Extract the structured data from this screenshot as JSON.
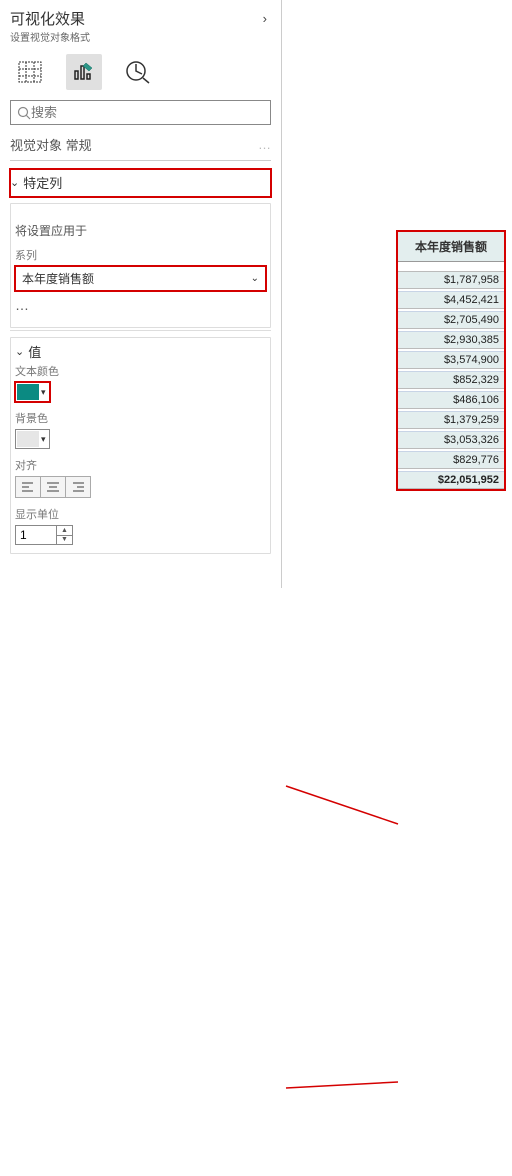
{
  "panel": {
    "title": "可视化效果",
    "subtitle": "设置视觉对象格式",
    "search_placeholder": "搜索",
    "tabs_label": "视觉对象  常规",
    "more": "…"
  },
  "specific_col": {
    "title": "特定列",
    "apply_label": "将设置应用于",
    "series_label": "系列",
    "series_value": "本年度销售额",
    "ellipsis": "…"
  },
  "value_section": {
    "title": "值",
    "text_color_label": "文本颜色",
    "text_color": "#0b8a82",
    "bg_color_label": "背景色",
    "bg_color": "#e6e6e6",
    "align_label": "对齐",
    "unit_label": "显示单位",
    "unit_value": "1"
  },
  "table": {
    "header": "本年度销售额",
    "rows": [
      "$1,787,958",
      "$4,452,421",
      "$2,705,490",
      "$2,930,385",
      "$3,574,900",
      "$852,329",
      "$486,106",
      "$1,379,259",
      "$3,053,326",
      "$829,776"
    ],
    "total": "$22,051,952",
    "header_bg": "#e3eeee",
    "cell_bg": "#e3eeee"
  }
}
